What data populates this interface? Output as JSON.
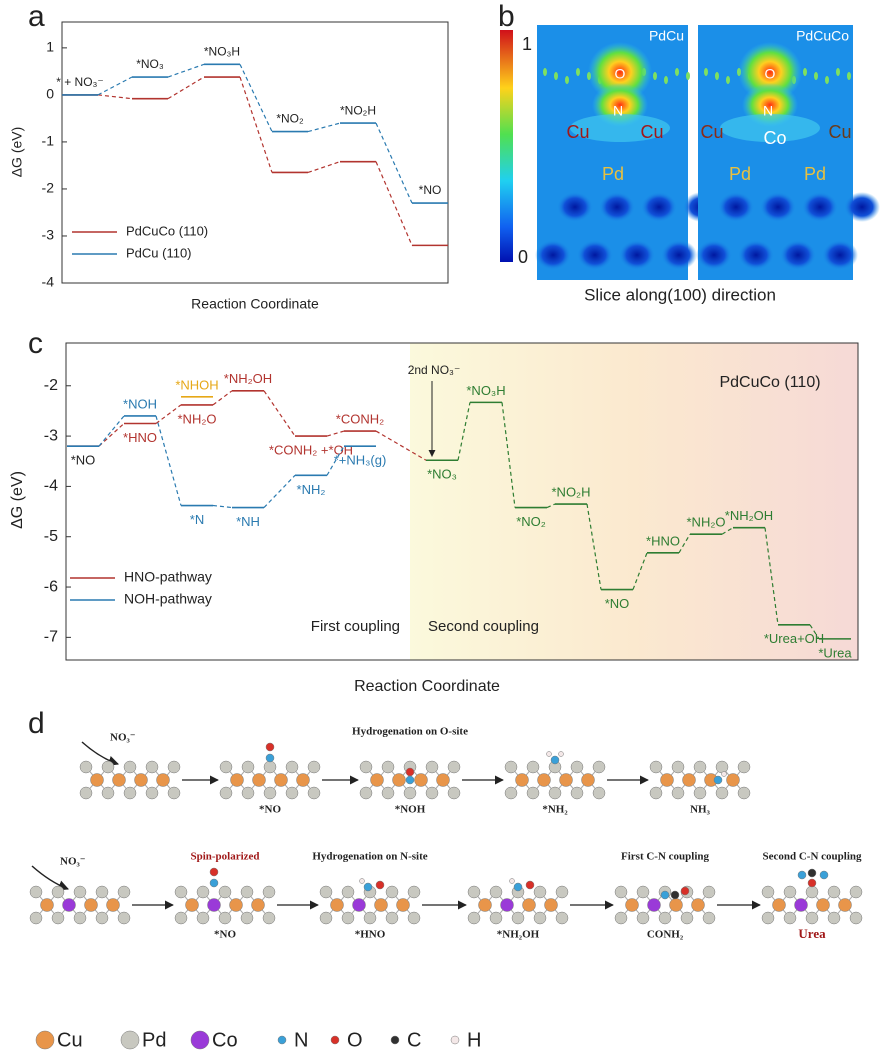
{
  "panels": [
    "a",
    "b",
    "c",
    "d"
  ],
  "chart_data": [
    {
      "type": "energy_levels",
      "ylabel": "ΔG (eV)",
      "xlabel": "Reaction Coordinate",
      "categories": [
        "* + NO₃⁻",
        "*NO₃",
        "*NO₃H",
        "*NO₂",
        "*NO₂H",
        "*NO"
      ],
      "series": [
        {
          "name": "PdCuCo (110)",
          "color": "#b2342f",
          "values": [
            0,
            -0.08,
            0.38,
            -1.65,
            -1.42,
            -3.2
          ]
        },
        {
          "name": "PdCu (110)",
          "color": "#2a7ab0",
          "values": [
            0,
            0.38,
            0.65,
            -0.78,
            -0.6,
            -2.3
          ]
        }
      ],
      "ylim": [
        -4,
        1.55
      ],
      "yticks": [
        -4,
        -3,
        -2,
        -1,
        0,
        1
      ],
      "legend": "lower left"
    },
    {
      "type": "energy_levels",
      "title": "PdCuCo (110)",
      "ylabel": "ΔG (eV)",
      "xlabel": "Reaction Coordinate",
      "start_label": "*NO",
      "series": [
        {
          "name": "HNO-pathway",
          "color": "#b2342f",
          "values": [
            -3.2,
            -2.75,
            -2.38,
            -2.1,
            -3.0,
            -2.9,
            null,
            null,
            null,
            null,
            null,
            null,
            null,
            null,
            null,
            null
          ],
          "labels": [
            null,
            "*HNO",
            "*NH₂O",
            "*NH₂OH",
            "*CONH₂ +*OH",
            "*CONH₂",
            null,
            null,
            null,
            null,
            null,
            null,
            null,
            null,
            null,
            null
          ]
        },
        {
          "name": "NOH-pathway",
          "color": "#2a7ab0",
          "values": [
            -3.2,
            -2.6,
            -4.38,
            -4.42,
            -3.78,
            -3.2,
            null,
            null,
            null,
            null,
            null,
            null,
            null,
            null,
            null,
            null
          ],
          "labels": [
            null,
            "*NOH",
            "*N",
            "*NH",
            "*NH₂",
            "*+NH₃(g)",
            null,
            null,
            null,
            null,
            null,
            null,
            null,
            null,
            null,
            null
          ]
        },
        {
          "color": "#2e7d32",
          "values": [
            null,
            null,
            null,
            null,
            null,
            null,
            -3.48,
            -2.33,
            -4.42,
            -4.35,
            -6.05,
            -5.32,
            -4.95,
            -4.82,
            -6.75,
            -7.03
          ],
          "labels": [
            null,
            null,
            null,
            null,
            null,
            null,
            "*NO₃",
            "*NO₃H",
            "*NO₂",
            "*NO₂H",
            "*NO",
            "*HNO",
            "*NH₂O",
            "*NH₂OH",
            "*Urea+OH",
            "*Urea"
          ]
        }
      ],
      "annotations": [
        {
          "text": "*NHOH",
          "value": -2.22,
          "position": 2,
          "color": "#e6a817"
        },
        {
          "text": "2nd NO₃⁻"
        }
      ],
      "regions": [
        {
          "label": "First coupling"
        },
        {
          "label": "Second coupling"
        }
      ],
      "ylim": [
        -7.45,
        -1.15
      ],
      "yticks": [
        -7,
        -6,
        -5,
        -4,
        -3,
        -2
      ],
      "legend": "lower left"
    }
  ],
  "heatmap": {
    "colorbar": {
      "max": "1",
      "min": "0"
    },
    "caption": "Slice  along(100) direction",
    "maps": [
      {
        "title": "PdCu",
        "atoms": [
          "O",
          "N",
          "Cu",
          "Cu",
          "Pd"
        ]
      },
      {
        "title": "PdCuCo",
        "atoms": [
          "O",
          "N",
          "Cu",
          "Co",
          "Cu",
          "Pd",
          "Pd"
        ]
      }
    ]
  },
  "scheme": {
    "rows": [
      {
        "reactant": "NO₃⁻",
        "labels": [
          null,
          "*NO",
          "*NOH",
          "*NH₂",
          "NH₃"
        ],
        "notes": [
          null,
          null,
          "Hydrogenation on O-site",
          null,
          null
        ]
      },
      {
        "reactant": "NO₃⁻",
        "labels": [
          null,
          "*NO",
          "*HNO",
          "*NH₂OH",
          "CONH₂",
          "Urea"
        ],
        "notes": [
          null,
          "Spin-polarized",
          "Hydrogenation on N-site",
          null,
          "First C-N coupling",
          "Second C-N coupling"
        ]
      }
    ],
    "legend": [
      "Cu",
      "Pd",
      "Co",
      "N",
      "O",
      "C",
      "H"
    ]
  }
}
